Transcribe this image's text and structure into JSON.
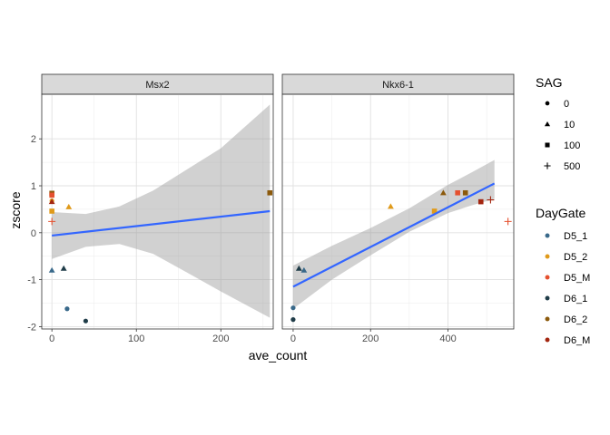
{
  "chart_data": {
    "type": "scatter",
    "x_label": "ave_count",
    "y_label": "zscore",
    "ylim": [
      -2.05,
      2.95
    ],
    "y_ticks": [
      -2,
      -1,
      0,
      1,
      2
    ],
    "grid": true,
    "legend_position": "right",
    "panels": [
      {
        "strip": "Msx2",
        "xlim": [
          -12,
          262
        ],
        "x_ticks": [
          0,
          100,
          200
        ],
        "fit": {
          "x": [
            0,
            258
          ],
          "y": [
            -0.06,
            0.46
          ],
          "ci_x": [
            0,
            40,
            80,
            120,
            160,
            200,
            258
          ],
          "ci_lower": [
            -0.56,
            -0.3,
            -0.24,
            -0.45,
            -0.85,
            -1.25,
            -1.81
          ],
          "ci_upper": [
            0.44,
            0.4,
            0.56,
            0.9,
            1.35,
            1.8,
            2.73
          ]
        },
        "points": [
          {
            "x": 0,
            "y": 0.84,
            "sag": "100",
            "daygate": "D6_2"
          },
          {
            "x": 0,
            "y": 0.8,
            "sag": "100",
            "daygate": "D5_M"
          },
          {
            "x": 0,
            "y": 0.68,
            "sag": "0",
            "daygate": "D5_2"
          },
          {
            "x": 0,
            "y": 0.66,
            "sag": "10",
            "daygate": "D6_M"
          },
          {
            "x": 0,
            "y": 0.46,
            "sag": "100",
            "daygate": "D5_2"
          },
          {
            "x": 0,
            "y": 0.24,
            "sag": "500",
            "daygate": "D5_M"
          },
          {
            "x": 20,
            "y": 0.55,
            "sag": "10",
            "daygate": "D5_2"
          },
          {
            "x": 0,
            "y": -0.8,
            "sag": "10",
            "daygate": "D5_1"
          },
          {
            "x": 14,
            "y": -0.76,
            "sag": "10",
            "daygate": "D6_1"
          },
          {
            "x": 18,
            "y": -1.62,
            "sag": "0",
            "daygate": "D5_1"
          },
          {
            "x": 40,
            "y": -1.88,
            "sag": "0",
            "daygate": "D6_1"
          },
          {
            "x": 258,
            "y": 0.85,
            "sag": "100",
            "daygate": "D6_2"
          }
        ]
      },
      {
        "strip": "Nkx6-1",
        "xlim": [
          -28,
          570
        ],
        "x_ticks": [
          0,
          200,
          400
        ],
        "fit": {
          "x": [
            0,
            520
          ],
          "y": [
            -1.15,
            1.05
          ],
          "ci_x": [
            0,
            100,
            200,
            300,
            400,
            460,
            520
          ],
          "ci_lower": [
            -1.62,
            -1.0,
            -0.48,
            0.02,
            0.42,
            0.58,
            0.72
          ],
          "ci_upper": [
            -0.7,
            -0.28,
            0.1,
            0.52,
            1.02,
            1.28,
            1.55
          ]
        },
        "points": [
          {
            "x": 0,
            "y": -1.6,
            "sag": "0",
            "daygate": "D5_1"
          },
          {
            "x": 0,
            "y": -1.85,
            "sag": "0",
            "daygate": "D6_1"
          },
          {
            "x": 15,
            "y": -0.76,
            "sag": "10",
            "daygate": "D6_1"
          },
          {
            "x": 28,
            "y": -0.8,
            "sag": "10",
            "daygate": "D5_1"
          },
          {
            "x": 252,
            "y": 0.56,
            "sag": "10",
            "daygate": "D5_2"
          },
          {
            "x": 365,
            "y": 0.46,
            "sag": "100",
            "daygate": "D5_2"
          },
          {
            "x": 388,
            "y": 0.85,
            "sag": "10",
            "daygate": "D6_2"
          },
          {
            "x": 425,
            "y": 0.85,
            "sag": "100",
            "daygate": "D5_M"
          },
          {
            "x": 445,
            "y": 0.85,
            "sag": "100",
            "daygate": "D6_2"
          },
          {
            "x": 485,
            "y": 0.66,
            "sag": "100",
            "daygate": "D6_M"
          },
          {
            "x": 510,
            "y": 0.7,
            "sag": "500",
            "daygate": "D6_M"
          },
          {
            "x": 555,
            "y": 0.24,
            "sag": "500",
            "daygate": "D5_M"
          }
        ]
      }
    ],
    "legends": [
      {
        "title": "SAG",
        "entries": [
          {
            "label": "0",
            "shape": "circle"
          },
          {
            "label": "10",
            "shape": "triangle"
          },
          {
            "label": "100",
            "shape": "square"
          },
          {
            "label": "500",
            "shape": "plus"
          }
        ]
      },
      {
        "title": "DayGate",
        "entries": [
          {
            "label": "D5_1",
            "color": "#39698a"
          },
          {
            "label": "D5_2",
            "color": "#e09a1a"
          },
          {
            "label": "D5_M",
            "color": "#e5502e"
          },
          {
            "label": "D6_1",
            "color": "#1f3c48"
          },
          {
            "label": "D6_2",
            "color": "#8c5a0c"
          },
          {
            "label": "D6_M",
            "color": "#a3250f"
          }
        ]
      }
    ],
    "fit_color": "#3366ff",
    "ribbon_color": "#999999",
    "strip_color": "#d9d9d9"
  }
}
